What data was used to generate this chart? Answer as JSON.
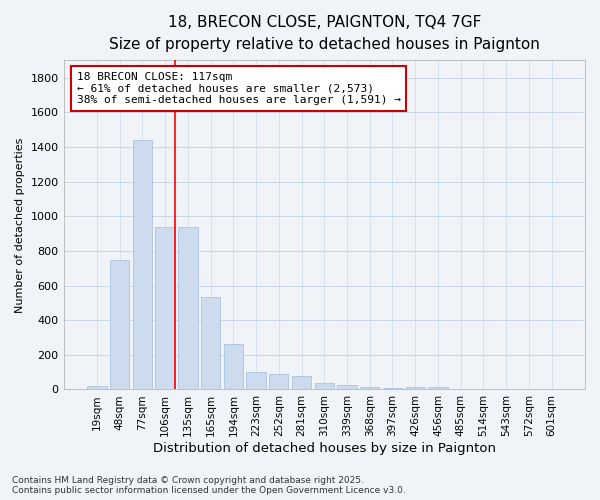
{
  "title": "18, BRECON CLOSE, PAIGNTON, TQ4 7GF",
  "subtitle": "Size of property relative to detached houses in Paignton",
  "xlabel": "Distribution of detached houses by size in Paignton",
  "ylabel": "Number of detached properties",
  "categories": [
    "19sqm",
    "48sqm",
    "77sqm",
    "106sqm",
    "135sqm",
    "165sqm",
    "194sqm",
    "223sqm",
    "252sqm",
    "281sqm",
    "310sqm",
    "339sqm",
    "368sqm",
    "397sqm",
    "426sqm",
    "456sqm",
    "485sqm",
    "514sqm",
    "543sqm",
    "572sqm",
    "601sqm"
  ],
  "values": [
    20,
    750,
    1440,
    940,
    935,
    535,
    265,
    100,
    90,
    75,
    40,
    25,
    15,
    8,
    12,
    12,
    5,
    5,
    5,
    5,
    2
  ],
  "bar_color": "#ccdcee",
  "bar_edge_color": "#aac4de",
  "red_line_idx": 3,
  "annotation_line1": "18 BRECON CLOSE: 117sqm",
  "annotation_line2": "← 61% of detached houses are smaller (2,573)",
  "annotation_line3": "38% of semi-detached houses are larger (1,591) →",
  "annotation_box_facecolor": "#ffffff",
  "annotation_box_edgecolor": "#cc0000",
  "ylim_max": 1900,
  "yticks": [
    0,
    200,
    400,
    600,
    800,
    1000,
    1200,
    1400,
    1600,
    1800
  ],
  "grid_color": "#c8d8e8",
  "bg_color": "#f0f4f8",
  "footer_line1": "Contains HM Land Registry data © Crown copyright and database right 2025.",
  "footer_line2": "Contains public sector information licensed under the Open Government Licence v3.0."
}
